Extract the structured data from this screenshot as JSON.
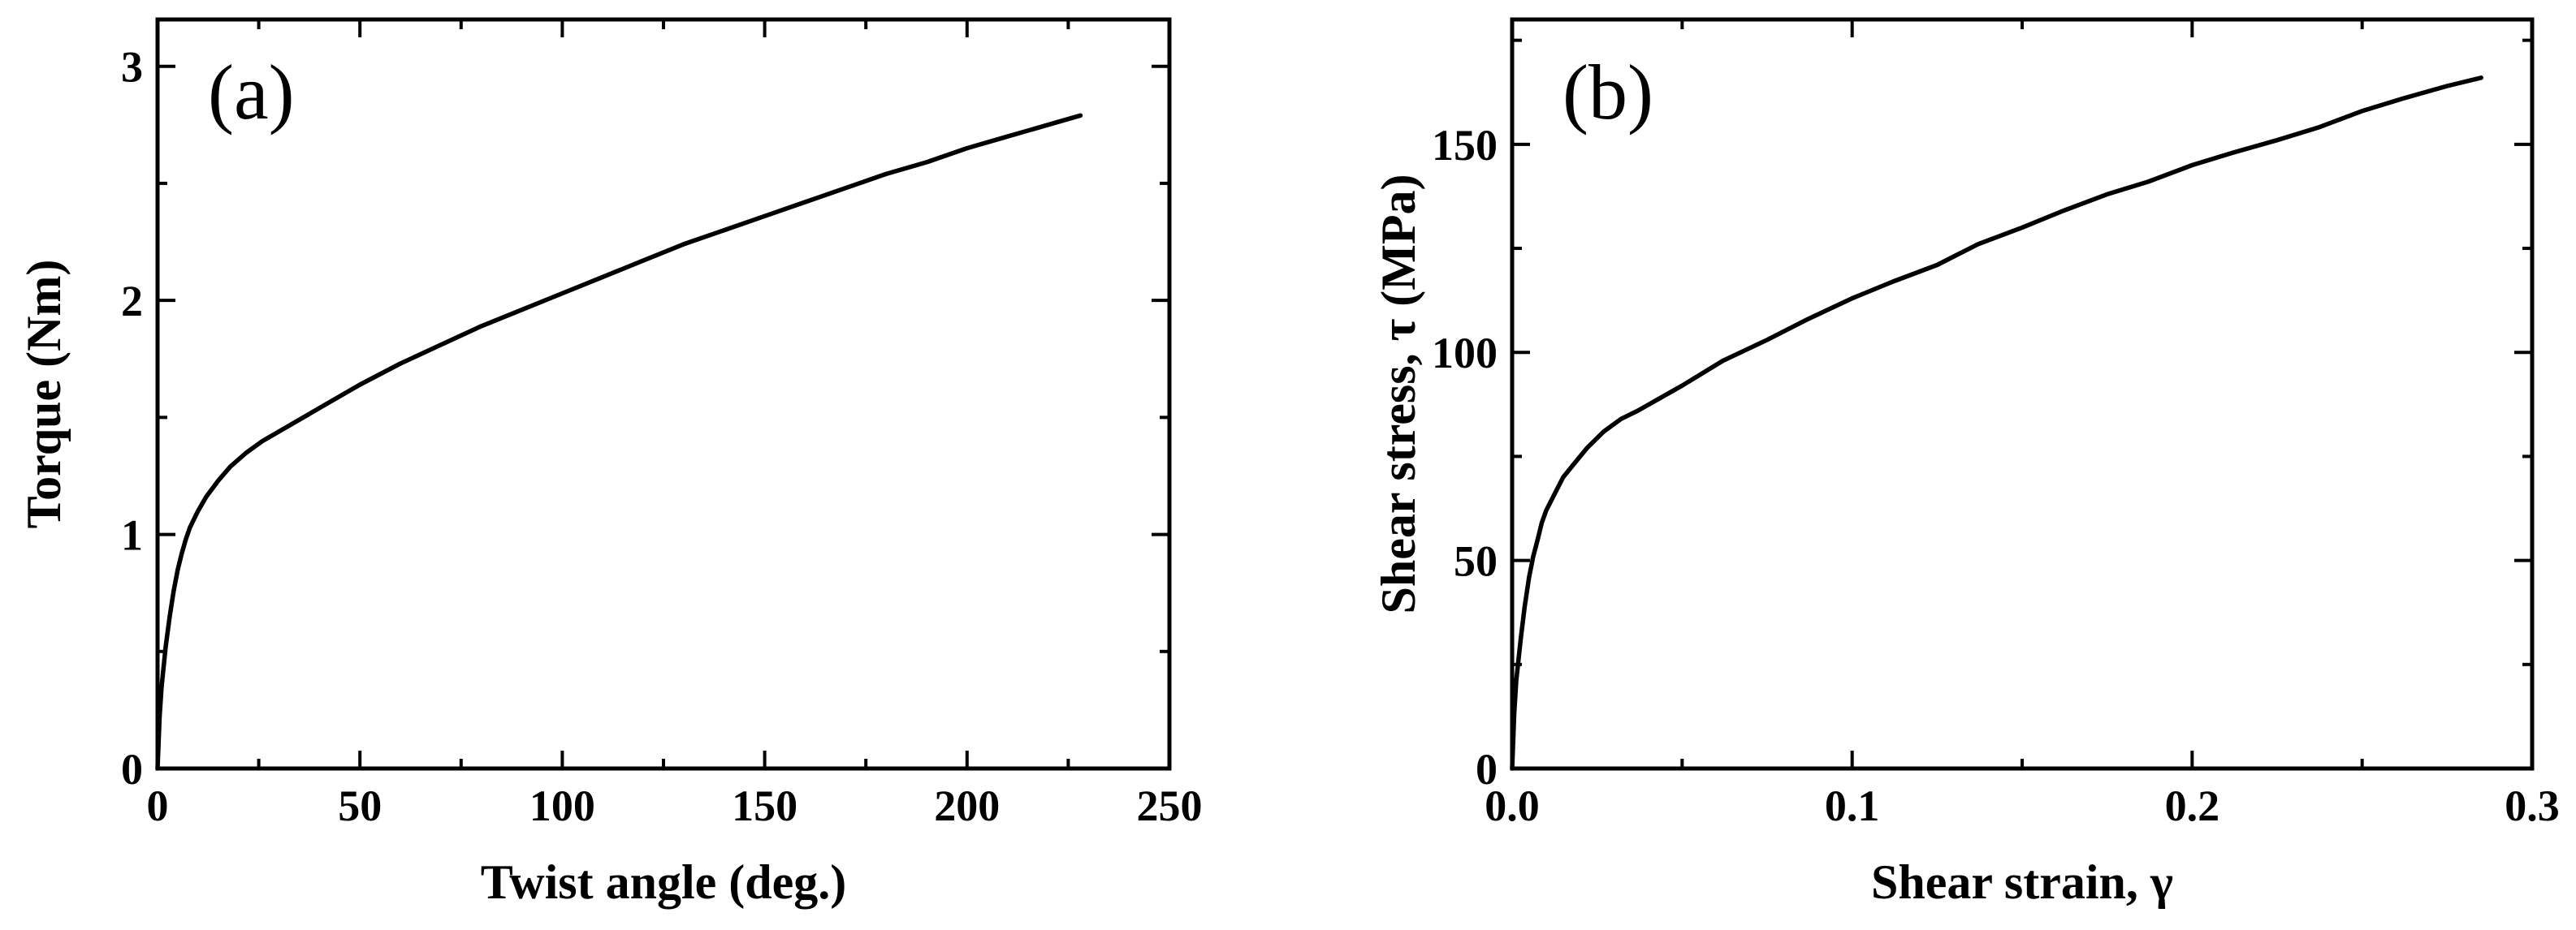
{
  "chart_data": [
    {
      "type": "line",
      "panel_label": "(a)",
      "title": "",
      "xlabel": "Twist angle (deg.)",
      "ylabel": "Torque (Nm)",
      "xlim": [
        0,
        250
      ],
      "ylim": [
        0,
        3.2
      ],
      "xticks": [
        0,
        50,
        100,
        150,
        200,
        250
      ],
      "xtick_labels": [
        "0",
        "50",
        "100",
        "150",
        "200",
        "250"
      ],
      "yticks": [
        0,
        1,
        2,
        3
      ],
      "ytick_labels": [
        "0",
        "1",
        "2",
        "3"
      ],
      "grid": false,
      "line_color": "#000000",
      "series": [
        {
          "name": "Torque",
          "x": [
            0,
            0.5,
            1,
            2,
            3,
            4,
            5,
            6,
            7,
            8,
            10,
            12,
            15,
            18,
            22,
            26,
            30,
            40,
            50,
            60,
            70,
            80,
            90,
            100,
            110,
            120,
            130,
            140,
            150,
            160,
            170,
            180,
            190,
            200,
            210,
            220,
            228
          ],
          "y": [
            0,
            0.22,
            0.35,
            0.52,
            0.65,
            0.76,
            0.85,
            0.92,
            0.98,
            1.03,
            1.1,
            1.16,
            1.23,
            1.29,
            1.35,
            1.4,
            1.44,
            1.54,
            1.64,
            1.73,
            1.81,
            1.89,
            1.96,
            2.03,
            2.1,
            2.17,
            2.24,
            2.3,
            2.36,
            2.42,
            2.48,
            2.54,
            2.59,
            2.65,
            2.7,
            2.75,
            2.79
          ]
        }
      ]
    },
    {
      "type": "line",
      "panel_label": "(b)",
      "title": "",
      "xlabel": "Shear strain, γ",
      "ylabel": "Shear stress, τ (MPa)",
      "xlim": [
        0,
        0.3
      ],
      "ylim": [
        0,
        180
      ],
      "xticks": [
        0,
        0.1,
        0.2,
        0.3
      ],
      "xtick_labels": [
        "0.0",
        "0.1",
        "0.2",
        "0.3"
      ],
      "yticks": [
        0,
        50,
        100,
        150
      ],
      "ytick_labels": [
        "0",
        "50",
        "100",
        "150"
      ],
      "grid": false,
      "line_color": "#000000",
      "series": [
        {
          "name": "Shear stress",
          "x": [
            0,
            0.0006,
            0.0012,
            0.0025,
            0.0037,
            0.005,
            0.0062,
            0.0075,
            0.0087,
            0.01,
            0.0125,
            0.015,
            0.019,
            0.022,
            0.027,
            0.032,
            0.037,
            0.05,
            0.062,
            0.075,
            0.087,
            0.1,
            0.112,
            0.125,
            0.137,
            0.15,
            0.162,
            0.175,
            0.187,
            0.2,
            0.212,
            0.225,
            0.237,
            0.25,
            0.262,
            0.275,
            0.285
          ],
          "y": [
            0,
            13,
            21,
            31,
            39,
            46,
            51,
            55,
            59,
            62,
            66,
            70,
            74,
            77,
            81,
            84,
            86,
            92,
            98,
            103,
            108,
            113,
            117,
            121,
            126,
            130,
            134,
            138,
            141,
            145,
            148,
            151,
            154,
            158,
            161,
            164,
            166
          ]
        }
      ]
    }
  ]
}
